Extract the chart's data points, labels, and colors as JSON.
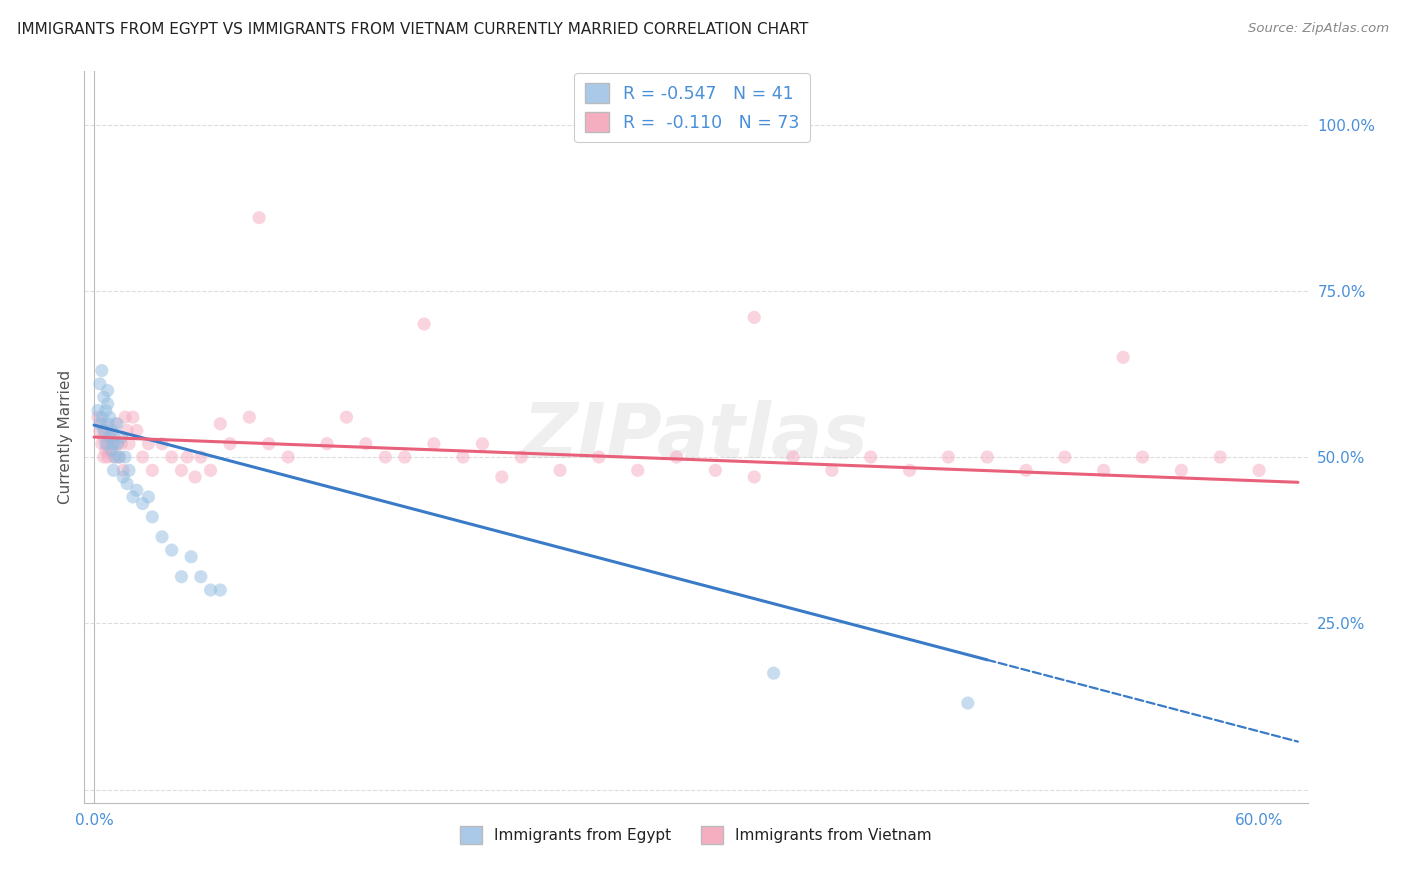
{
  "title": "IMMIGRANTS FROM EGYPT VS IMMIGRANTS FROM VIETNAM CURRENTLY MARRIED CORRELATION CHART",
  "source": "Source: ZipAtlas.com",
  "ylabel": "Currently Married",
  "legend_entry1": {
    "color": "#aac8e8",
    "R": "-0.547",
    "N": "41",
    "label": "Immigrants from Egypt"
  },
  "legend_entry2": {
    "color": "#f5aec0",
    "R": "-0.110",
    "N": "73",
    "label": "Immigrants from Vietnam"
  },
  "xlim": [
    -0.005,
    0.625
  ],
  "ylim": [
    -0.02,
    1.08
  ],
  "background_color": "#ffffff",
  "grid_color": "#dddddd",
  "title_color": "#222222",
  "axis_label_color": "#555555",
  "right_axis_color": "#4a90d9",
  "watermark": "ZIPatlas",
  "blue_scatter": {
    "x": [
      0.002,
      0.003,
      0.003,
      0.004,
      0.004,
      0.005,
      0.005,
      0.006,
      0.006,
      0.007,
      0.007,
      0.007,
      0.008,
      0.008,
      0.009,
      0.009,
      0.01,
      0.01,
      0.011,
      0.012,
      0.012,
      0.013,
      0.014,
      0.015,
      0.016,
      0.017,
      0.018,
      0.02,
      0.022,
      0.025,
      0.028,
      0.03,
      0.035,
      0.04,
      0.045,
      0.05,
      0.055,
      0.06,
      0.065,
      0.35,
      0.45
    ],
    "y": [
      0.57,
      0.61,
      0.55,
      0.63,
      0.56,
      0.59,
      0.54,
      0.57,
      0.52,
      0.6,
      0.55,
      0.58,
      0.53,
      0.56,
      0.51,
      0.54,
      0.52,
      0.48,
      0.5,
      0.52,
      0.55,
      0.5,
      0.53,
      0.47,
      0.5,
      0.46,
      0.48,
      0.44,
      0.45,
      0.43,
      0.44,
      0.41,
      0.38,
      0.36,
      0.32,
      0.35,
      0.32,
      0.3,
      0.3,
      0.175,
      0.13
    ]
  },
  "pink_scatter": {
    "x": [
      0.002,
      0.003,
      0.004,
      0.004,
      0.005,
      0.005,
      0.006,
      0.006,
      0.007,
      0.007,
      0.008,
      0.008,
      0.009,
      0.01,
      0.01,
      0.011,
      0.012,
      0.013,
      0.014,
      0.015,
      0.016,
      0.017,
      0.018,
      0.02,
      0.022,
      0.025,
      0.028,
      0.03,
      0.035,
      0.04,
      0.045,
      0.048,
      0.052,
      0.055,
      0.06,
      0.065,
      0.07,
      0.08,
      0.09,
      0.1,
      0.12,
      0.13,
      0.14,
      0.15,
      0.16,
      0.175,
      0.19,
      0.2,
      0.21,
      0.22,
      0.24,
      0.26,
      0.28,
      0.3,
      0.32,
      0.34,
      0.36,
      0.38,
      0.4,
      0.42,
      0.44,
      0.46,
      0.48,
      0.5,
      0.52,
      0.54,
      0.56,
      0.58,
      0.6,
      0.085,
      0.17,
      0.34,
      0.53
    ],
    "y": [
      0.56,
      0.54,
      0.52,
      0.55,
      0.5,
      0.53,
      0.51,
      0.54,
      0.52,
      0.5,
      0.53,
      0.51,
      0.52,
      0.5,
      0.53,
      0.55,
      0.52,
      0.5,
      0.52,
      0.48,
      0.56,
      0.54,
      0.52,
      0.56,
      0.54,
      0.5,
      0.52,
      0.48,
      0.52,
      0.5,
      0.48,
      0.5,
      0.47,
      0.5,
      0.48,
      0.55,
      0.52,
      0.56,
      0.52,
      0.5,
      0.52,
      0.56,
      0.52,
      0.5,
      0.5,
      0.52,
      0.5,
      0.52,
      0.47,
      0.5,
      0.48,
      0.5,
      0.48,
      0.5,
      0.48,
      0.47,
      0.5,
      0.48,
      0.5,
      0.48,
      0.5,
      0.5,
      0.48,
      0.5,
      0.48,
      0.5,
      0.48,
      0.5,
      0.48,
      0.86,
      0.7,
      0.71,
      0.65
    ]
  },
  "blue_line_solid": {
    "x0": 0.0,
    "y0": 0.548,
    "x1": 0.46,
    "y1": 0.195
  },
  "blue_line_dash": {
    "x0": 0.46,
    "y0": 0.195,
    "x1": 0.62,
    "y1": 0.072
  },
  "pink_line": {
    "x0": 0.0,
    "y0": 0.53,
    "x1": 0.62,
    "y1": 0.462
  },
  "scatter_size": 90,
  "scatter_alpha": 0.5,
  "blue_color": "#90bce0",
  "pink_color": "#f5a8bf",
  "blue_line_color": "#3a7bc8",
  "pink_line_color": "#e8607a",
  "watermark_color": "#cccccc",
  "watermark_fontsize": 55,
  "watermark_alpha": 0.3
}
